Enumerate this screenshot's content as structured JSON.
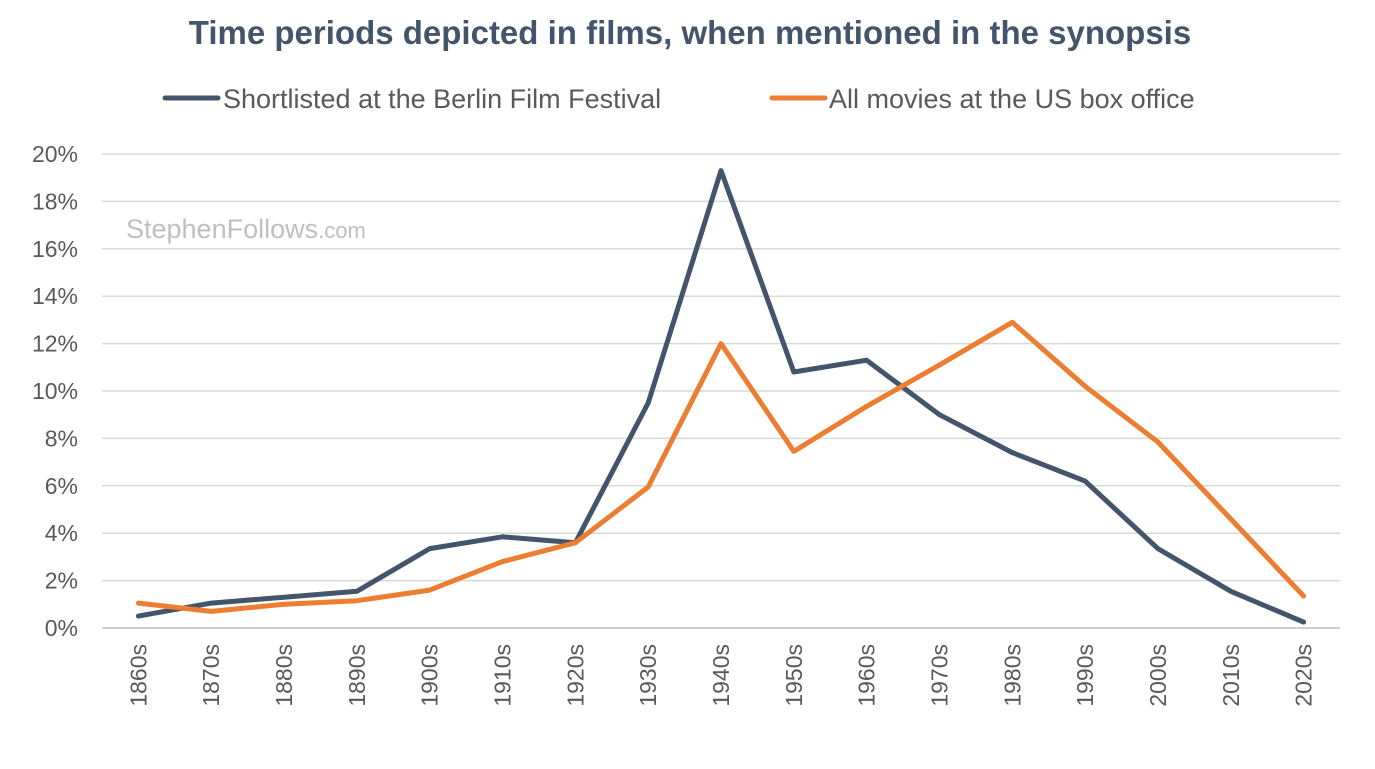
{
  "chart_data": {
    "type": "line",
    "title": "Time periods depicted in films, when mentioned in the synopsis",
    "xlabel": "",
    "ylabel": "",
    "categories": [
      "1860s",
      "1870s",
      "1880s",
      "1890s",
      "1900s",
      "1910s",
      "1920s",
      "1930s",
      "1940s",
      "1950s",
      "1960s",
      "1970s",
      "1980s",
      "1990s",
      "2000s",
      "2010s",
      "2020s"
    ],
    "series": [
      {
        "name": "Shortlisted at the Berlin Film Festival",
        "color": "#44546a",
        "values": [
          0.5,
          1.05,
          1.3,
          1.55,
          3.35,
          3.85,
          3.6,
          9.5,
          19.3,
          10.8,
          11.3,
          9.0,
          7.4,
          6.2,
          3.35,
          1.55,
          0.25
        ]
      },
      {
        "name": "All movies at the US box office",
        "color": "#ed7d31",
        "values": [
          1.05,
          0.7,
          1.0,
          1.15,
          1.6,
          2.8,
          3.6,
          5.95,
          12.0,
          7.45,
          9.35,
          11.1,
          12.9,
          10.2,
          7.85,
          4.6,
          1.35
        ]
      }
    ],
    "yticks": [
      "0%",
      "2%",
      "4%",
      "6%",
      "8%",
      "10%",
      "12%",
      "14%",
      "16%",
      "18%",
      "20%"
    ],
    "ylim": [
      0,
      20
    ],
    "grid": true,
    "legend_position": "top"
  },
  "watermark": {
    "name": "StephenFollows",
    "suffix": ".com"
  }
}
